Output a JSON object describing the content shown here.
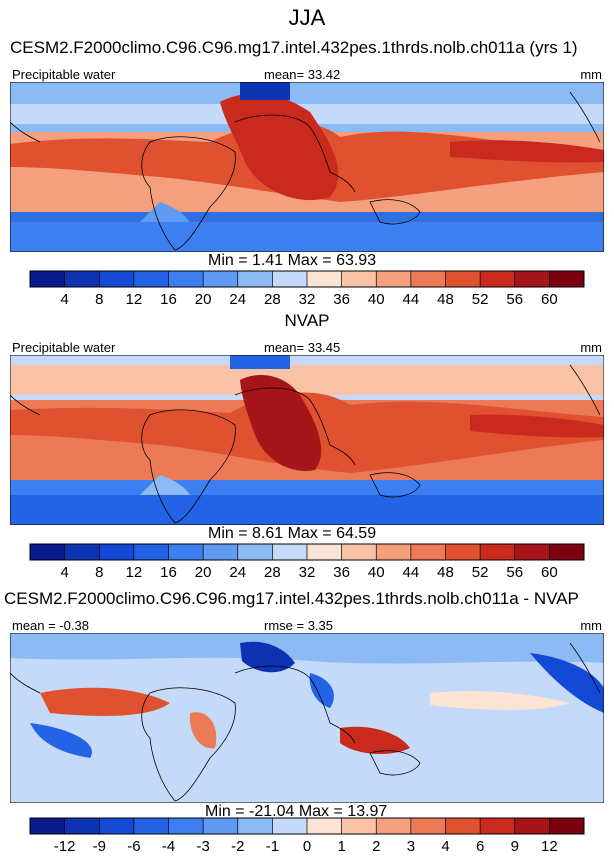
{
  "page": {
    "main_title": "JJA",
    "colors": {
      "deep_blue": "#0b1f8f",
      "light": "#e8eefa",
      "deep_red": "#7a0010"
    }
  },
  "chart_data": [
    {
      "type": "heatmap",
      "title": "CESM2.F2000climo.C96.C96.mg17.intel.432pes.1thrds.nolb.ch011a (yrs 1)",
      "left_label": "Precipitable water",
      "stat_text": "mean=  33.42",
      "units": "mm",
      "minmax_text": "Min =   1.41 Max =  63.93",
      "stats": {
        "mean": 33.42,
        "min": 1.41,
        "max": 63.93
      },
      "colorbar": {
        "tick_labels": [
          "4",
          "8",
          "12",
          "16",
          "20",
          "24",
          "28",
          "32",
          "36",
          "40",
          "44",
          "48",
          "52",
          "56",
          "60"
        ],
        "colors": [
          "#0a1a8c",
          "#0d33b3",
          "#1449d6",
          "#2463e6",
          "#3d7ff0",
          "#5f9bf2",
          "#8cbaf5",
          "#c4daf8",
          "#fbe4d6",
          "#f9c3a8",
          "#f4a07e",
          "#ec7a57",
          "#e0512f",
          "#c92a1d",
          "#a5151a",
          "#7a0010"
        ],
        "range": [
          0,
          64
        ]
      }
    },
    {
      "type": "heatmap",
      "title": "NVAP",
      "left_label": "Precipitable water",
      "stat_text": "mean=  33.45",
      "units": "mm",
      "minmax_text": "Min =   8.61 Max =  64.59",
      "stats": {
        "mean": 33.45,
        "min": 8.61,
        "max": 64.59
      },
      "colorbar": {
        "tick_labels": [
          "4",
          "8",
          "12",
          "16",
          "20",
          "24",
          "28",
          "32",
          "36",
          "40",
          "44",
          "48",
          "52",
          "56",
          "60"
        ],
        "colors": [
          "#0a1a8c",
          "#0d33b3",
          "#1449d6",
          "#2463e6",
          "#3d7ff0",
          "#5f9bf2",
          "#8cbaf5",
          "#c4daf8",
          "#fbe4d6",
          "#f9c3a8",
          "#f4a07e",
          "#ec7a57",
          "#e0512f",
          "#c92a1d",
          "#a5151a",
          "#7a0010"
        ],
        "range": [
          0,
          64
        ]
      }
    },
    {
      "type": "heatmap",
      "title": "CESM2.F2000climo.C96.C96.mg17.intel.432pes.1thrds.nolb.ch011a - NVAP",
      "left_label": "mean =  -0.38",
      "stat_text": "rmse =   3.35",
      "units": "mm",
      "minmax_text": "Min = -21.04 Max =  13.97",
      "stats": {
        "mean": -0.38,
        "rmse": 3.35,
        "min": -21.04,
        "max": 13.97
      },
      "colorbar": {
        "tick_labels": [
          "-12",
          "-9",
          "-6",
          "-4",
          "-3",
          "-2",
          "-1",
          "0",
          "1",
          "2",
          "3",
          "4",
          "6",
          "9",
          "12"
        ],
        "colors": [
          "#0a1a8c",
          "#0d33b3",
          "#1449d6",
          "#2463e6",
          "#3d7ff0",
          "#5f9bf2",
          "#8cbaf5",
          "#c4daf8",
          "#fbe4d6",
          "#f9c3a8",
          "#f4a07e",
          "#ec7a57",
          "#e0512f",
          "#c92a1d",
          "#a5151a",
          "#7a0010"
        ],
        "range": [
          -15,
          15
        ]
      }
    }
  ]
}
